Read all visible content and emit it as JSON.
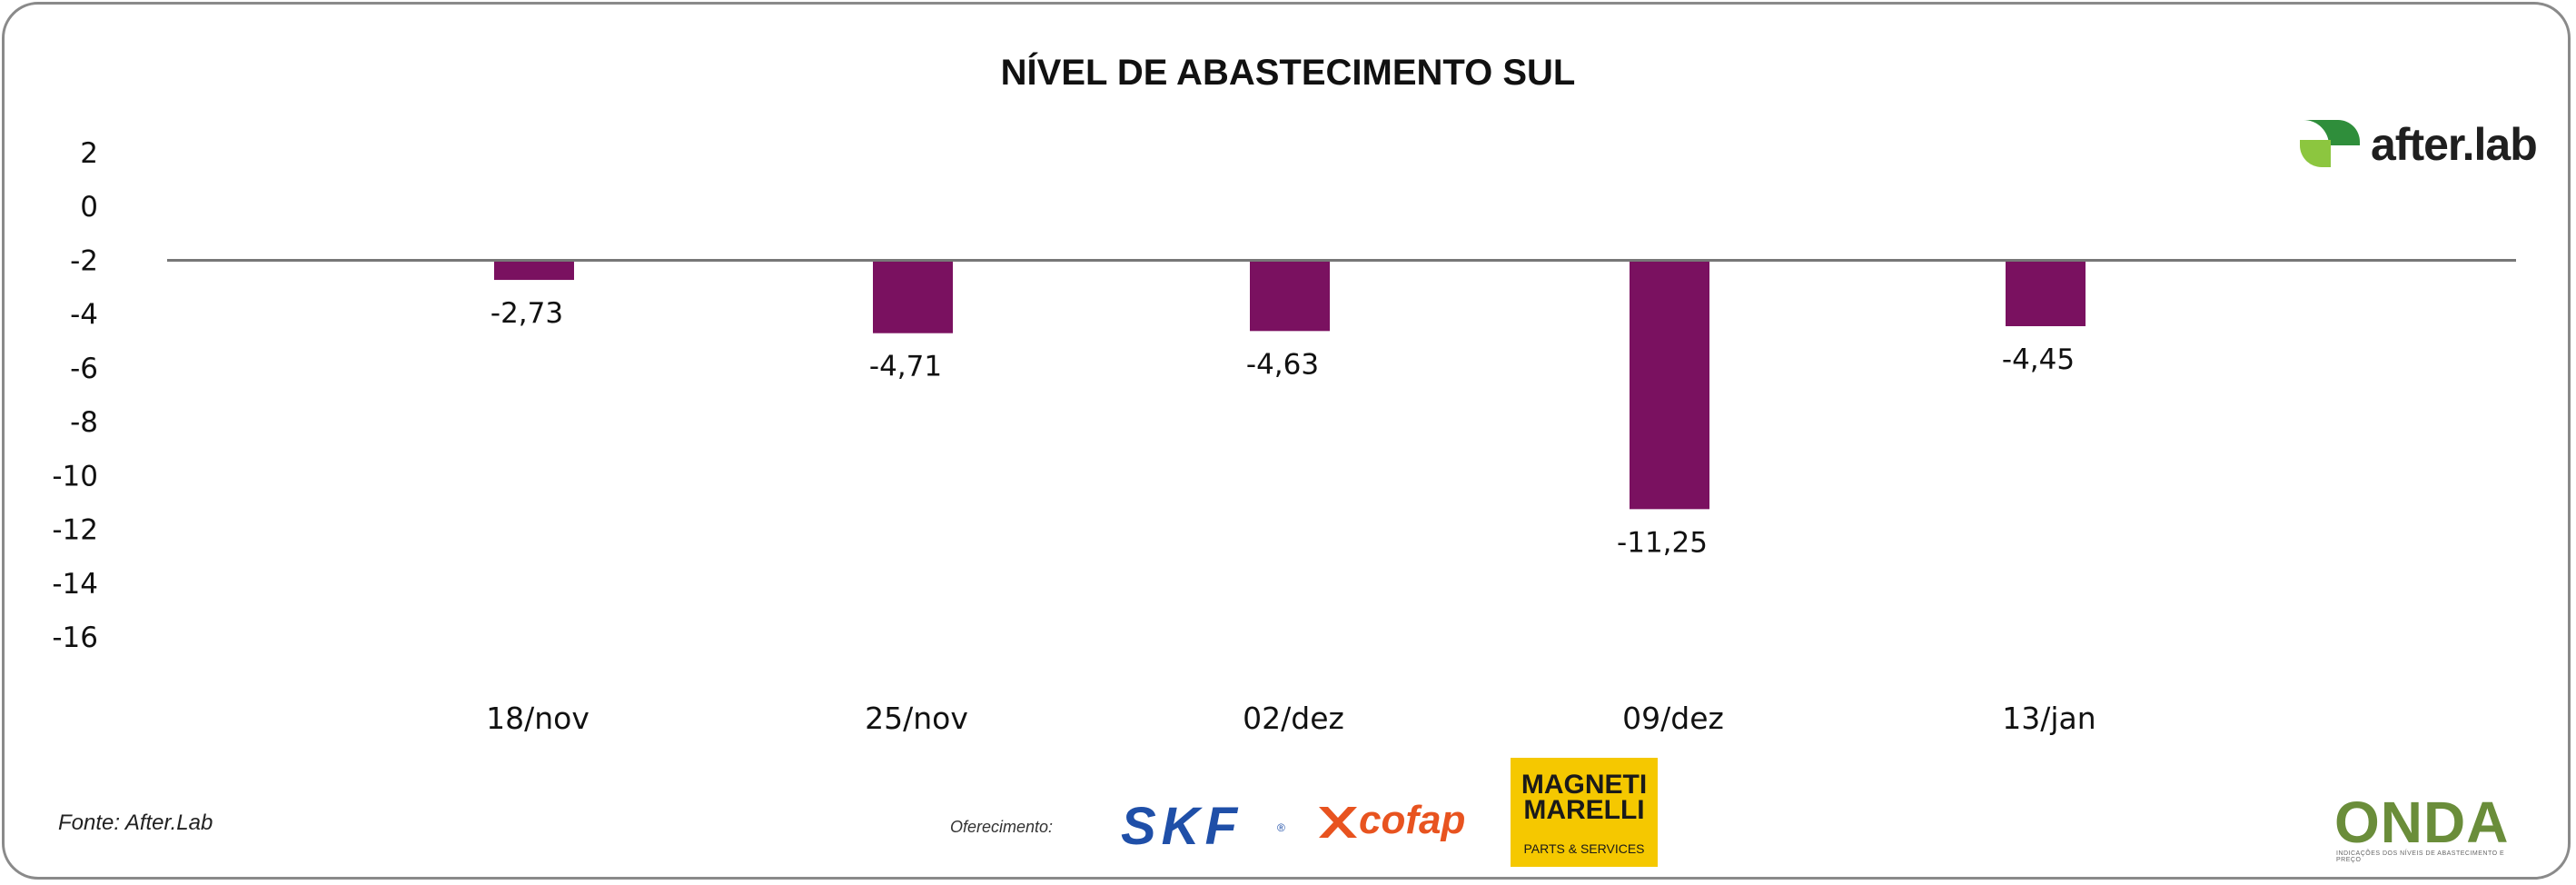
{
  "chart_data": {
    "type": "bar",
    "title": "NÍVEL DE ABASTECIMENTO SUL",
    "categories": [
      "18/nov",
      "25/nov",
      "02/dez",
      "09/dez",
      "13/jan"
    ],
    "values": [
      -2.73,
      -4.71,
      -4.63,
      -11.25,
      -4.45
    ],
    "value_labels": [
      "-2,73",
      "-4,71",
      "-4,63",
      "-11,25",
      "-4,45"
    ],
    "yticks": [
      "2",
      "0",
      "-2",
      "-4",
      "-6",
      "-8",
      "-10",
      "-12",
      "-14",
      "-16"
    ],
    "ylim": [
      -16,
      2
    ],
    "xlabel": "",
    "ylabel": "",
    "grid": false,
    "bar_color": "#7a1160",
    "axis_color": "#777777"
  },
  "footer": {
    "source": "Fonte: After.Lab",
    "sponsor_label": "Oferecimento:"
  },
  "logos": {
    "afterlab": "after.lab",
    "skf": "SKF",
    "skf_mark": "®",
    "cofap": "cofap",
    "magneti_marelli": "MAGNETI MARELLI",
    "magneti_sub": "PARTS & SERVICES",
    "onda": "ONDA",
    "onda_tagline": "INDICAÇÕES DOS NÍVEIS DE ABASTECIMENTO E PREÇO"
  }
}
